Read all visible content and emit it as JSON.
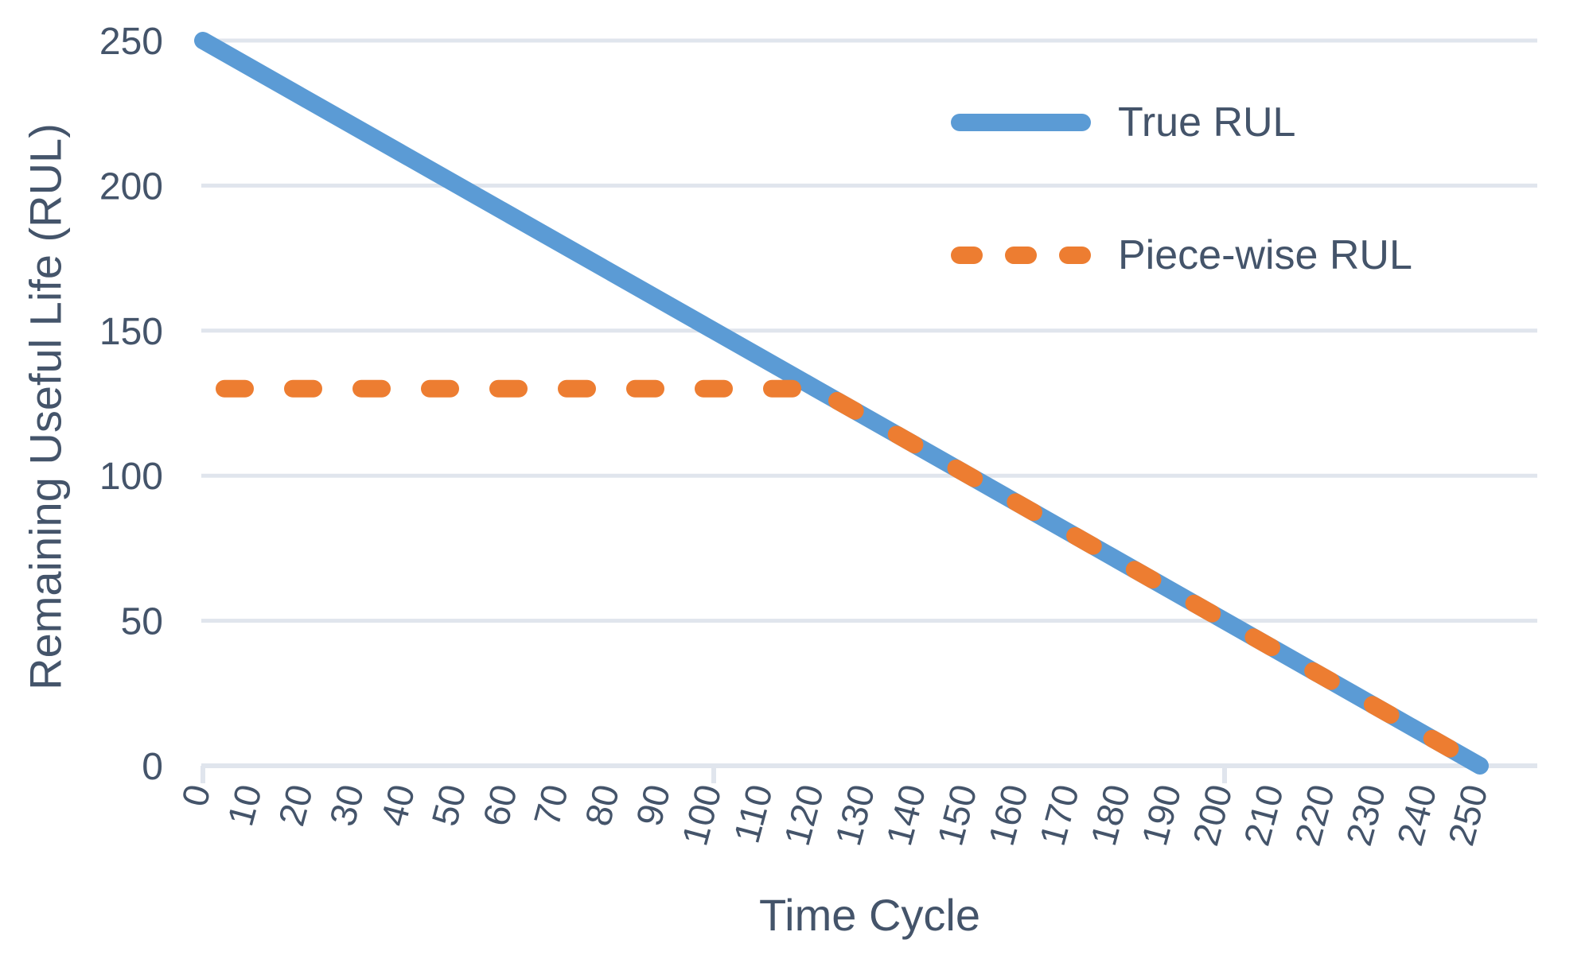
{
  "figure": {
    "background": "#ffffff"
  },
  "colors": {
    "text": "#44546A",
    "grid": "#E0E5ED",
    "true_rul": "#5B9BD5",
    "piecewise_rul": "#ED7D31"
  },
  "legend": {
    "items": [
      {
        "label": "True RUL",
        "style": "solid",
        "color": "#5B9BD5"
      },
      {
        "label": "Piece-wise RUL",
        "style": "dashed",
        "color": "#ED7D31"
      }
    ]
  },
  "chart_data": {
    "type": "line",
    "title": "",
    "xlabel": "Time Cycle",
    "ylabel": "Remaining Useful Life (RUL)",
    "xlim": [
      0,
      250
    ],
    "ylim": [
      0,
      250
    ],
    "x_ticks": [
      0,
      10,
      20,
      30,
      40,
      50,
      60,
      70,
      80,
      90,
      100,
      110,
      120,
      130,
      140,
      150,
      160,
      170,
      180,
      190,
      200,
      210,
      220,
      230,
      240,
      250
    ],
    "y_ticks": [
      0,
      50,
      100,
      150,
      200,
      250
    ],
    "grid": "horizontal",
    "legend_position": "upper right",
    "series": [
      {
        "name": "True RUL",
        "style": "solid",
        "color": "#5B9BD5",
        "points": [
          [
            0,
            250
          ],
          [
            120,
            130
          ],
          [
            250,
            0
          ]
        ],
        "description": "True remaining useful life declining linearly from 250 at cycle 0 to 0 at cycle 250"
      },
      {
        "name": "Piece-wise RUL",
        "style": "dashed",
        "color": "#ED7D31",
        "points": [
          [
            0,
            130
          ],
          [
            120,
            130
          ],
          [
            250,
            0
          ]
        ],
        "description": "Piece-wise RUL capped at 130 until cycle 120, then declining linearly to 0 at cycle 250"
      }
    ],
    "piecewise_cap": 130,
    "knee_cycle": 120,
    "failure_cycle": 250
  }
}
